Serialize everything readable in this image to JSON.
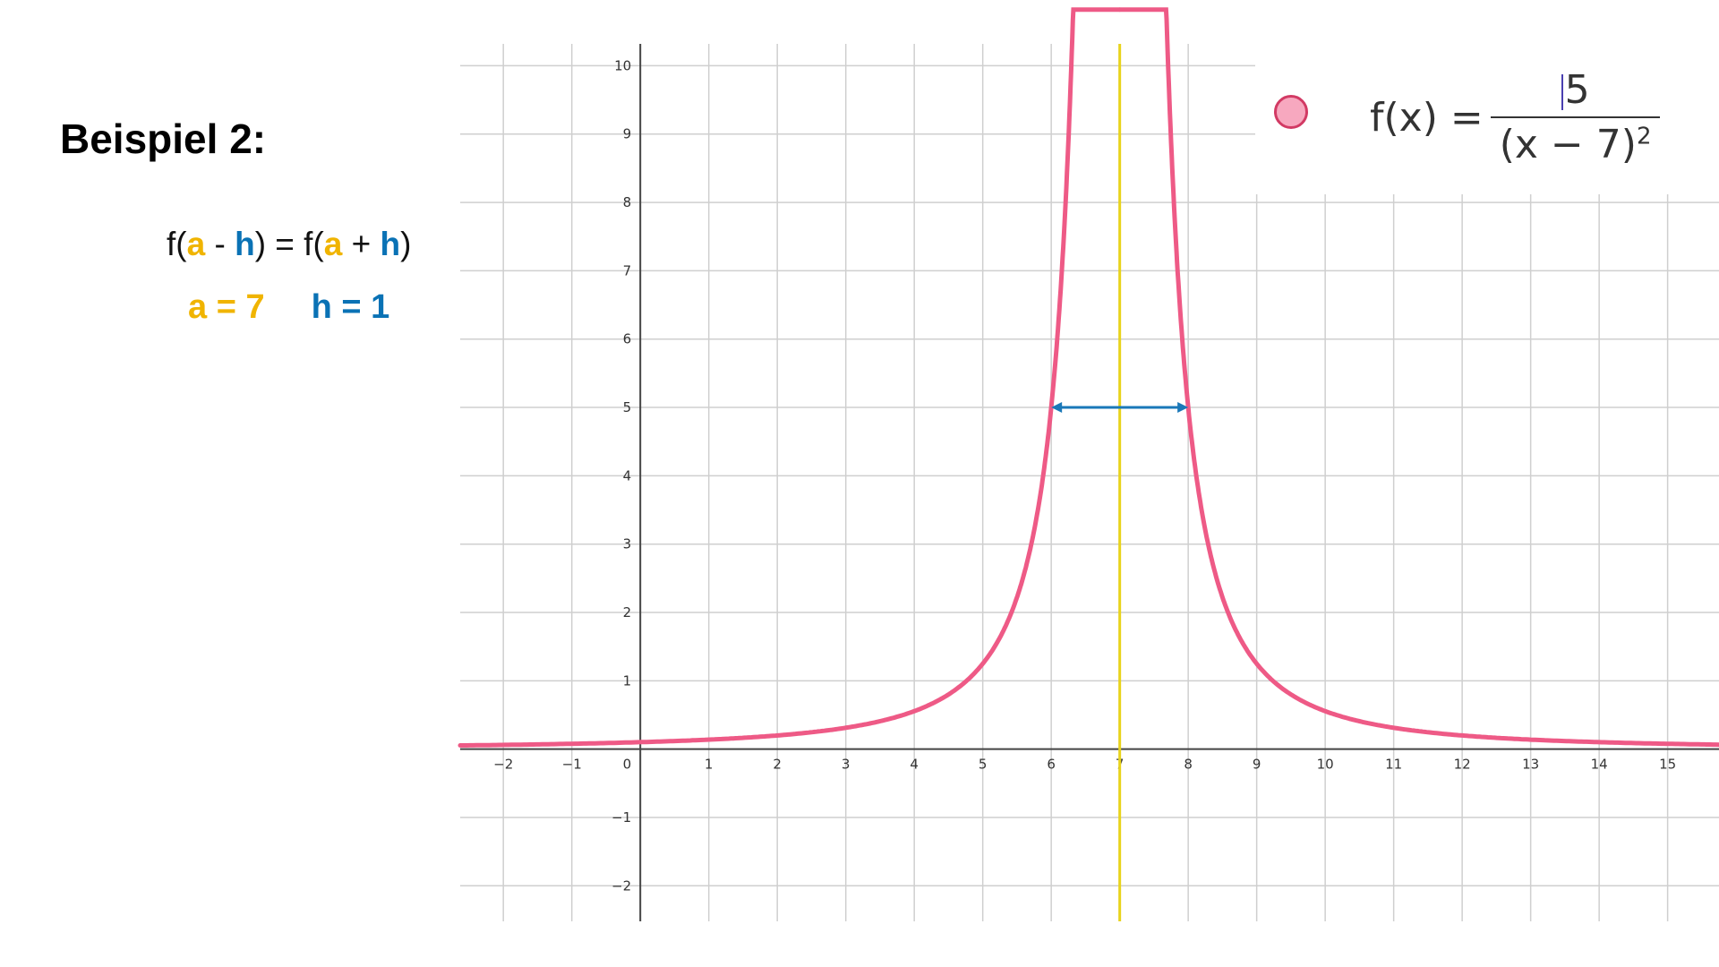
{
  "heading": "Beispiel 2:",
  "equation": {
    "f1": "f(",
    "a1": "a",
    "m": " - ",
    "h1": "h",
    "mid": ") = f(",
    "a2": "a",
    "p": " + ",
    "h2": "h",
    "end": ")"
  },
  "values": {
    "a": "a = 7",
    "h": "h = 1"
  },
  "colors": {
    "a": "#f0b400",
    "h": "#0a72b5",
    "curve": "#ee5a86",
    "symmetry_line": "#e8d31c",
    "arrow": "#1a78b8"
  },
  "legend": {
    "lhs": "f(x) =",
    "numerator": "5",
    "denominator": "(x − 7)",
    "exponent": "2",
    "marker_color": "#f7a8bf"
  },
  "chart_data": {
    "type": "line",
    "function": "f(x) = 5/(x-7)^2",
    "series": [
      {
        "a": 5,
        "pole": 7
      }
    ],
    "xlim": [
      -2.63,
      15.75
    ],
    "ylim": [
      -2.52,
      10.32
    ],
    "x_ticks": [
      -2,
      -1,
      0,
      1,
      2,
      3,
      4,
      5,
      6,
      7,
      8,
      9,
      10,
      11,
      12,
      13,
      14,
      15
    ],
    "y_ticks": [
      -2,
      -1,
      1,
      2,
      3,
      4,
      5,
      6,
      7,
      8,
      9,
      10
    ],
    "origin_label": "0",
    "grid": true,
    "vertical_line_x": 7,
    "arrow": {
      "y": 5,
      "x_from": 6,
      "x_to": 8
    }
  }
}
